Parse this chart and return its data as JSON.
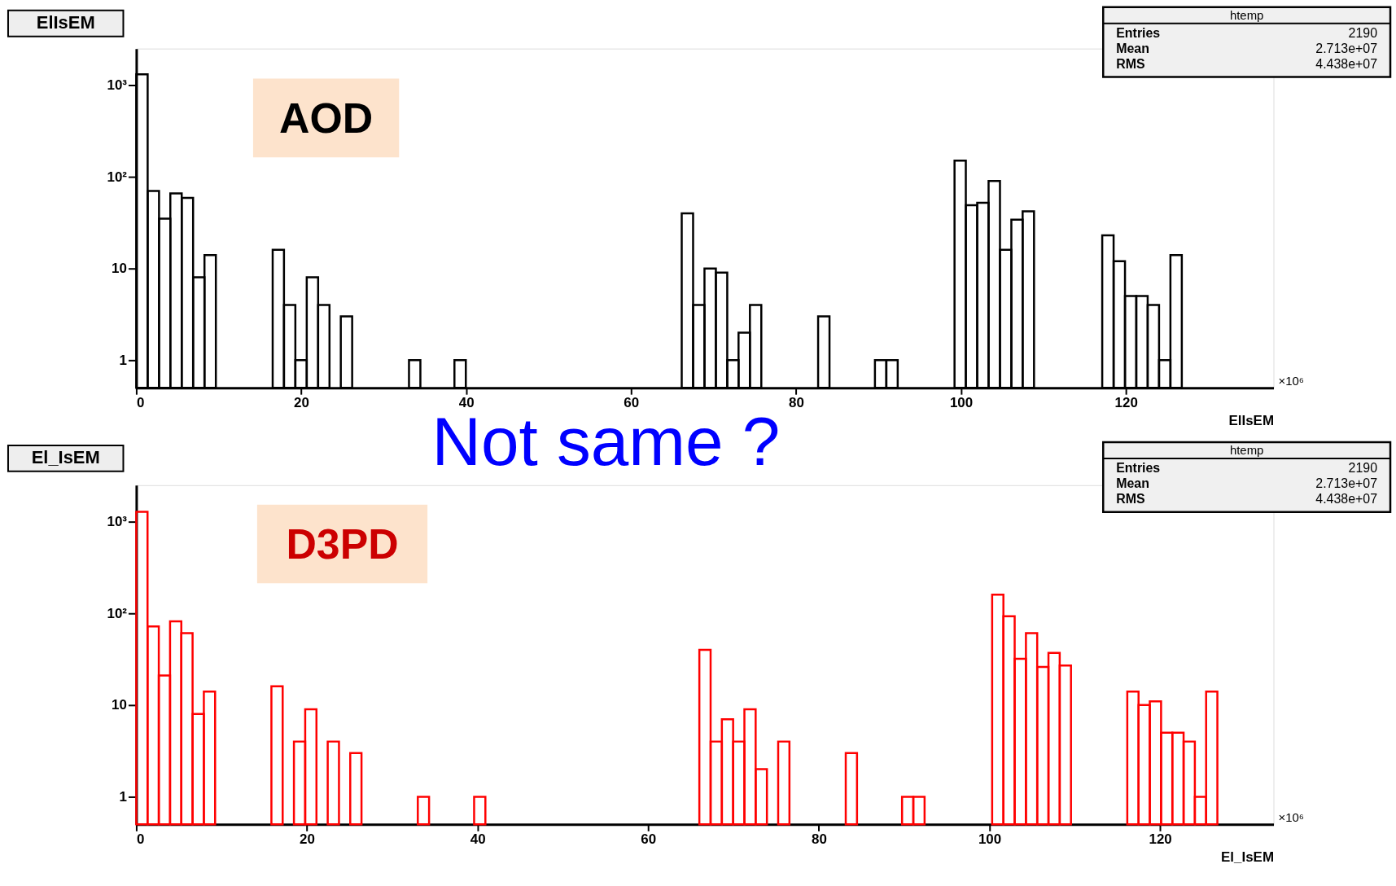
{
  "chart_data": [
    {
      "type": "histogram",
      "title": "ElIsEM",
      "xlabel": "ElIsEM",
      "color": "#000000",
      "bins": [
        0,
        1.38,
        2.76,
        4.13,
        5.51,
        6.89,
        8.27,
        9.65,
        11.02,
        12.4,
        13.78,
        15.16,
        16.54,
        17.91,
        19.29,
        20.67,
        22.05,
        23.43,
        24.8,
        26.18,
        27.56,
        28.94,
        30.32,
        31.69,
        33.07,
        34.45,
        35.83,
        37.21,
        38.58,
        39.96,
        41.34,
        42.72,
        44.1,
        45.47,
        46.85,
        48.23,
        49.61,
        50.99,
        52.36,
        53.74,
        55.12,
        56.5,
        57.88,
        59.25,
        60.63,
        62.01,
        63.39,
        64.77,
        66.14,
        67.52,
        68.9,
        70.28,
        71.66,
        73.03,
        74.41,
        75.79,
        77.17,
        78.55,
        79.92,
        81.3,
        82.68,
        84.06,
        85.44,
        86.81,
        88.19,
        89.57,
        90.95,
        92.33,
        93.7,
        95.08,
        96.46,
        97.84,
        99.22,
        100.59,
        101.97,
        103.35,
        104.73,
        106.11,
        107.48,
        108.86,
        110.24,
        111.62,
        113,
        114.37,
        115.75,
        117.13,
        118.51,
        119.89,
        121.26,
        122.64,
        124.02,
        125.4,
        126.78
      ],
      "values": [
        1310,
        70,
        35,
        66,
        59,
        8,
        14,
        null,
        null,
        null,
        null,
        null,
        16,
        4,
        1,
        8,
        4,
        null,
        3,
        null,
        null,
        null,
        null,
        null,
        1,
        null,
        null,
        null,
        1,
        null,
        null,
        null,
        null,
        null,
        null,
        null,
        null,
        null,
        null,
        null,
        null,
        null,
        null,
        null,
        null,
        null,
        null,
        null,
        40,
        4,
        10,
        9,
        1,
        2,
        4,
        null,
        null,
        null,
        null,
        null,
        3,
        null,
        null,
        null,
        null,
        1,
        1,
        null,
        null,
        null,
        null,
        null,
        150,
        49,
        52,
        90,
        16,
        34,
        42,
        null,
        null,
        null,
        null,
        null,
        null,
        23,
        12,
        5,
        5,
        4,
        1,
        14
      ],
      "xlim": [
        0,
        137.9
      ],
      "xticks": [
        0,
        20,
        40,
        60,
        80,
        100,
        120
      ],
      "ylim": [
        0.5,
        2500
      ],
      "yticks": [
        1,
        10,
        {
          "value": 100,
          "label": "10²"
        },
        {
          "value": 1000,
          "label": "10³"
        }
      ],
      "log": true,
      "annotations": [
        "AOD",
        "×10⁶",
        "htemp",
        "Entries",
        "2190",
        "Mean",
        "2.713e+07",
        "RMS",
        "4.438e+07",
        "Not same ?"
      ]
    },
    {
      "type": "histogram",
      "title": "El_IsEM",
      "xlabel": "El_IsEM",
      "color": "#ff0000",
      "bins": [
        0,
        1.32,
        2.64,
        3.96,
        5.28,
        6.6,
        7.92,
        9.24,
        10.56,
        11.88,
        13.2,
        14.52,
        15.84,
        17.16,
        18.48,
        19.8,
        21.12,
        22.44,
        23.76,
        25.08,
        26.4,
        27.72,
        29.04,
        30.36,
        31.68,
        33,
        34.32,
        35.64,
        36.96,
        38.28,
        39.6,
        40.92,
        42.24,
        43.56,
        44.88,
        46.2,
        47.52,
        48.84,
        50.16,
        51.48,
        52.8,
        54.12,
        55.44,
        56.76,
        58.08,
        59.4,
        60.72,
        62.04,
        63.36,
        64.68,
        66,
        67.32,
        68.64,
        69.96,
        71.28,
        72.6,
        73.92,
        75.24,
        76.56,
        77.88,
        79.2,
        80.52,
        81.84,
        83.16,
        84.48,
        85.8,
        87.12,
        88.44,
        89.76,
        91.08,
        92.4,
        93.72,
        95.04,
        96.36,
        97.68,
        99,
        100.32,
        101.64,
        102.96,
        104.28,
        105.6,
        106.92,
        108.24,
        109.56,
        110.88,
        112.2,
        113.52,
        114.84,
        116.16,
        117.48,
        118.8,
        120.12,
        121.44,
        122.76,
        124.08,
        125.4,
        126.72
      ],
      "values": [
        1280,
        72,
        21,
        82,
        61,
        8,
        14,
        null,
        null,
        null,
        null,
        null,
        16,
        null,
        4,
        9,
        null,
        4,
        null,
        3,
        null,
        null,
        null,
        null,
        null,
        1,
        null,
        null,
        null,
        null,
        1,
        null,
        null,
        null,
        null,
        null,
        null,
        null,
        null,
        null,
        null,
        null,
        null,
        null,
        null,
        null,
        null,
        null,
        null,
        null,
        40,
        4,
        7,
        4,
        9,
        2,
        null,
        4,
        null,
        null,
        null,
        null,
        null,
        3,
        null,
        null,
        null,
        null,
        1,
        1,
        null,
        null,
        null,
        null,
        null,
        null,
        160,
        93,
        32,
        61,
        26,
        37,
        27,
        null,
        null,
        null,
        null,
        null,
        14,
        10,
        11,
        5,
        5,
        4,
        1,
        14
      ],
      "xlim": [
        0,
        133.3
      ],
      "xticks": [
        0,
        20,
        40,
        60,
        80,
        100,
        120
      ],
      "ylim": [
        0.5,
        2500
      ],
      "yticks": [
        1,
        10,
        {
          "value": 100,
          "label": "10²"
        },
        {
          "value": 1000,
          "label": "10³"
        }
      ],
      "log": true,
      "annotations": [
        "D3PD",
        "×10⁶",
        "htemp",
        "Entries",
        "2190",
        "Mean",
        "2.713e+07",
        "RMS",
        "4.438e+07"
      ]
    }
  ]
}
